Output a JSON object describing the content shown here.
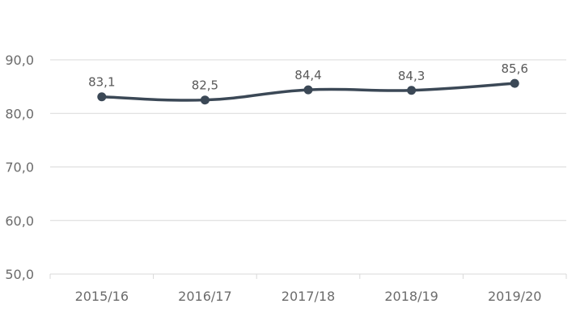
{
  "chart_data": {
    "type": "line",
    "categories": [
      "2015/16",
      "2016/17",
      "2017/18",
      "2018/19",
      "2019/20"
    ],
    "series": [
      {
        "values": [
          83.1,
          82.5,
          84.4,
          84.3,
          85.6
        ],
        "data_labels": [
          "83,1",
          "82,5",
          "84,4",
          "84,3",
          "85,6"
        ]
      }
    ],
    "yticks": [
      50,
      60,
      70,
      80,
      90
    ],
    "ytick_labels": [
      "50,0",
      "60,0",
      "70,0",
      "80,0",
      "90,0"
    ],
    "ylim": [
      50,
      90
    ],
    "grid": true,
    "line_color": "#3b4856",
    "marker": "circle",
    "smooth": true
  }
}
